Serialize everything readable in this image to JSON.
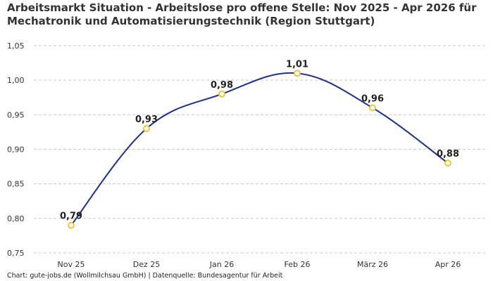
{
  "chart_data": {
    "type": "line",
    "title": "Arbeitsmarkt Situation - Arbeitslose pro offene Stelle: Nov 2025 - Apr 2026 für Mechatronik und Automatisierungstechnik (Region Stuttgart)",
    "categories": [
      "Nov 25",
      "Dez 25",
      "Jan 26",
      "Feb 26",
      "März 26",
      "Apr 26"
    ],
    "values": [
      0.79,
      0.93,
      0.98,
      1.01,
      0.96,
      0.88
    ],
    "data_labels": [
      "0,79",
      "0,93",
      "0,98",
      "1,01",
      "0,96",
      "0,88"
    ],
    "y_ticks": [
      0.75,
      0.8,
      0.85,
      0.9,
      0.95,
      1.0,
      1.05
    ],
    "y_tick_labels": [
      "0,75",
      "0,80",
      "0,85",
      "0,90",
      "0,95",
      "1,00",
      "1,05"
    ],
    "ylim": [
      0.75,
      1.05
    ],
    "xlabel": "",
    "ylabel": "",
    "grid": "horizontal-dashed",
    "legend": "none",
    "line_color": "#1f2f8c",
    "marker_color": "#f2c020"
  },
  "footer": "Chart: gute-jobs.de (Wollmilchsau GmbH) | Datenquelle: Bundesagentur für Arbeit"
}
